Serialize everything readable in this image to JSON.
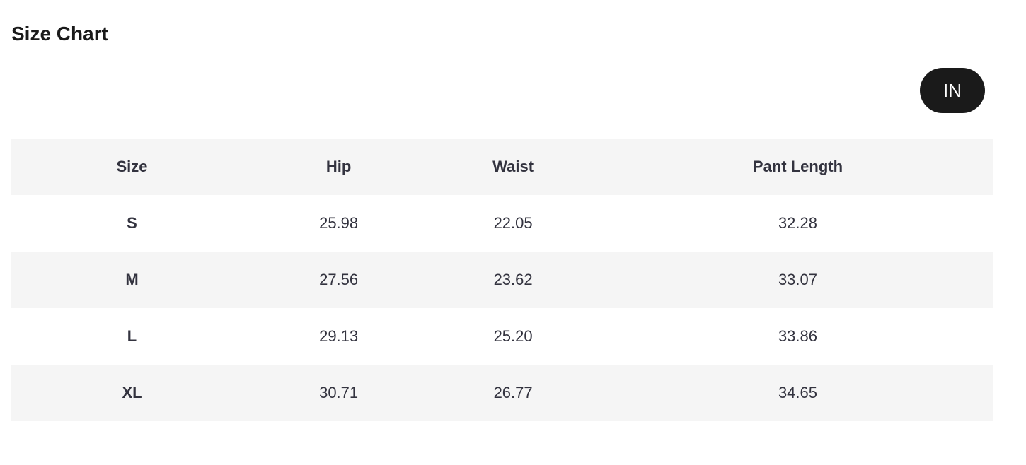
{
  "title": "Size Chart",
  "unit_toggle": {
    "label": "IN",
    "background": "#1a1a1a"
  },
  "table": {
    "headers": [
      "Size",
      "Hip",
      "Waist",
      "Pant Length"
    ],
    "rows": [
      [
        "S",
        "25.98",
        "22.05",
        "32.28"
      ],
      [
        "M",
        "27.56",
        "23.62",
        "33.07"
      ],
      [
        "L",
        "29.13",
        "25.20",
        "33.86"
      ],
      [
        "XL",
        "30.71",
        "26.77",
        "34.65"
      ]
    ]
  }
}
